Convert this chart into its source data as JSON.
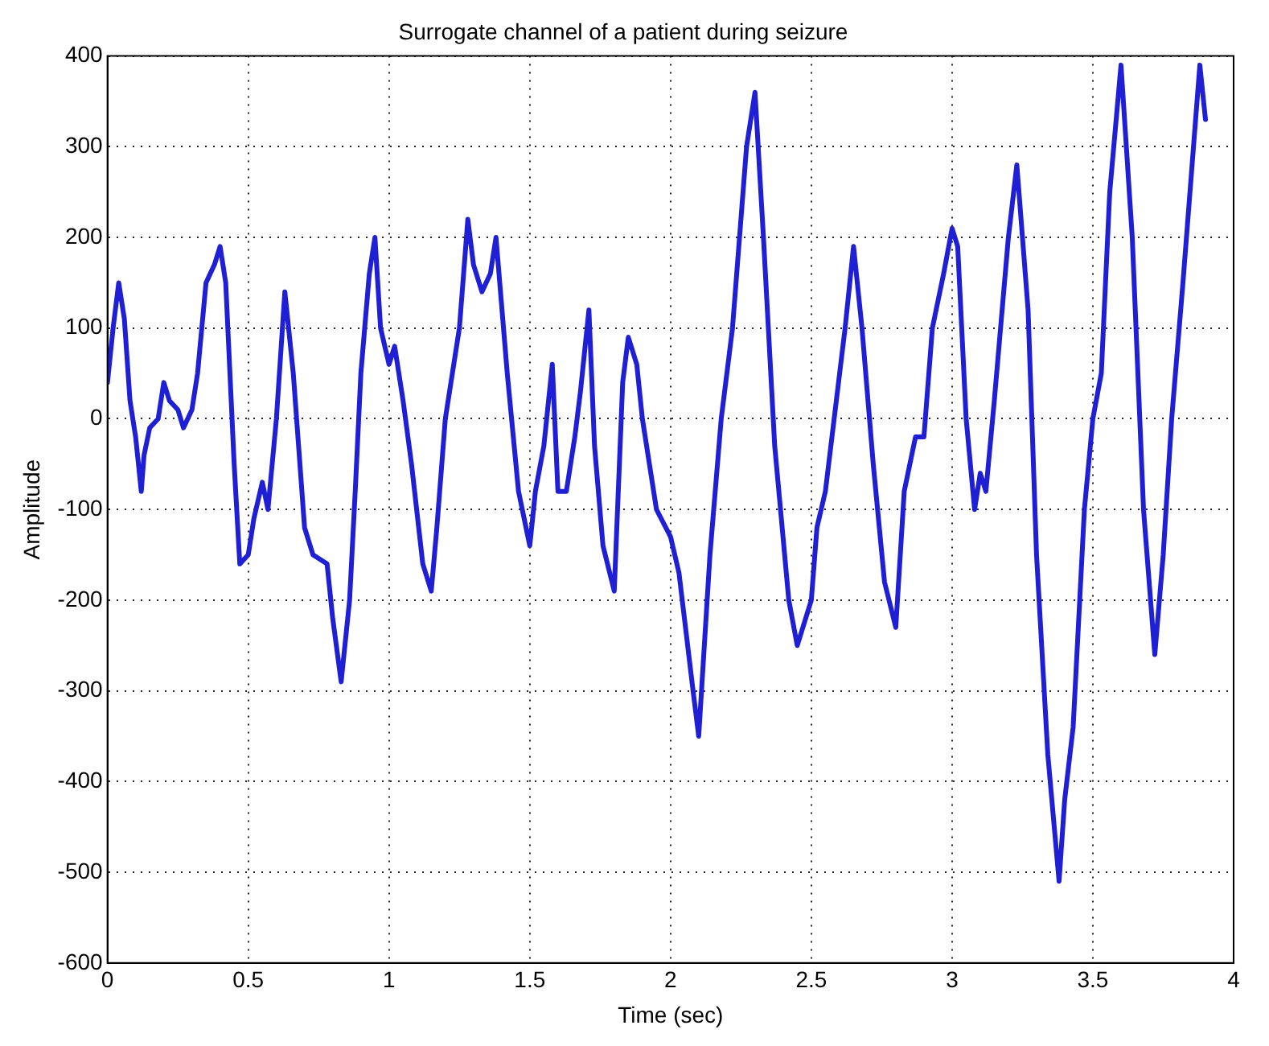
{
  "chart_data": {
    "type": "line",
    "title": "Surrogate channel of a patient during seizure",
    "xlabel": "Time (sec)",
    "ylabel": "Amplitude",
    "series": [
      {
        "color": "#1f1fd6",
        "x": [
          0,
          0.02,
          0.04,
          0.06,
          0.08,
          0.1,
          0.12,
          0.13,
          0.15,
          0.18,
          0.2,
          0.22,
          0.25,
          0.27,
          0.3,
          0.32,
          0.35,
          0.38,
          0.4,
          0.42,
          0.45,
          0.47,
          0.5,
          0.52,
          0.55,
          0.57,
          0.6,
          0.63,
          0.66,
          0.7,
          0.73,
          0.78,
          0.8,
          0.83,
          0.86,
          0.88,
          0.9,
          0.93,
          0.95,
          0.97,
          1.0,
          1.02,
          1.05,
          1.08,
          1.12,
          1.15,
          1.17,
          1.2,
          1.25,
          1.28,
          1.3,
          1.33,
          1.36,
          1.38,
          1.42,
          1.46,
          1.5,
          1.52,
          1.55,
          1.58,
          1.6,
          1.63,
          1.66,
          1.68,
          1.71,
          1.73,
          1.76,
          1.8,
          1.83,
          1.85,
          1.88,
          1.9,
          1.95,
          2.0,
          2.03,
          2.08,
          2.1,
          2.14,
          2.18,
          2.22,
          2.27,
          2.3,
          2.33,
          2.37,
          2.42,
          2.45,
          2.5,
          2.52,
          2.55,
          2.62,
          2.65,
          2.68,
          2.72,
          2.76,
          2.8,
          2.83,
          2.87,
          2.9,
          2.93,
          2.97,
          3.0,
          3.02,
          3.05,
          3.08,
          3.1,
          3.12,
          3.15,
          3.2,
          3.23,
          3.27,
          3.3,
          3.34,
          3.38,
          3.4,
          3.43,
          3.47,
          3.5,
          3.53,
          3.56,
          3.6,
          3.64,
          3.68,
          3.72,
          3.75,
          3.78,
          3.82,
          3.86,
          3.88,
          3.9
        ],
        "values": [
          40,
          100,
          150,
          110,
          20,
          -20,
          -80,
          -40,
          -10,
          0,
          40,
          20,
          10,
          -10,
          10,
          50,
          150,
          170,
          190,
          150,
          -50,
          -160,
          -150,
          -110,
          -70,
          -100,
          0,
          140,
          50,
          -120,
          -150,
          -160,
          -220,
          -290,
          -200,
          -80,
          50,
          160,
          200,
          100,
          60,
          80,
          20,
          -50,
          -160,
          -190,
          -120,
          0,
          100,
          220,
          170,
          140,
          160,
          200,
          50,
          -80,
          -140,
          -80,
          -30,
          60,
          -80,
          -80,
          -20,
          30,
          120,
          -30,
          -140,
          -190,
          40,
          90,
          60,
          0,
          -100,
          -130,
          -170,
          -300,
          -350,
          -150,
          0,
          100,
          300,
          360,
          200,
          -30,
          -200,
          -250,
          -200,
          -120,
          -80,
          100,
          190,
          100,
          -50,
          -180,
          -230,
          -80,
          -20,
          -20,
          100,
          160,
          210,
          190,
          0,
          -100,
          -60,
          -80,
          20,
          200,
          280,
          120,
          -150,
          -370,
          -510,
          -420,
          -340,
          -100,
          0,
          50,
          250,
          390,
          200,
          -100,
          -260,
          -150,
          0,
          150,
          310,
          390,
          330
        ]
      }
    ],
    "xlim": [
      0,
      4
    ],
    "xticks": [
      0,
      {
        "value": 0.5,
        "label": "0.5"
      },
      1,
      {
        "value": 1.5,
        "label": "1.5"
      },
      2,
      {
        "value": 2.5,
        "label": "2.5"
      },
      3,
      {
        "value": 3.5,
        "label": "3.5"
      },
      4
    ],
    "ylim": [
      -600,
      400
    ],
    "yticks": [
      -600,
      -500,
      -400,
      -300,
      -200,
      -100,
      0,
      100,
      200,
      300,
      400
    ],
    "grid": true,
    "legend": false,
    "marker": "none",
    "line_style": "solid"
  }
}
